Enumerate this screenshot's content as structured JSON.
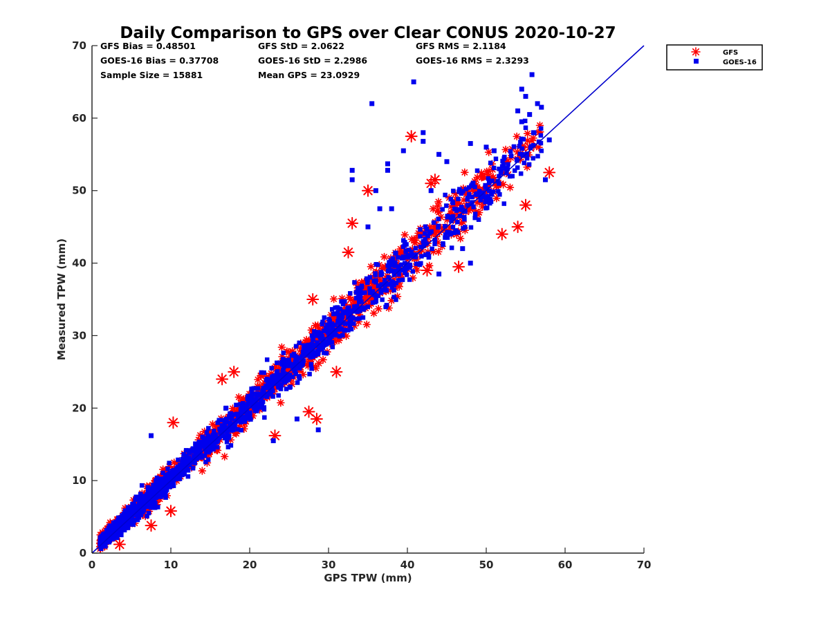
{
  "chart_data": {
    "type": "scatter",
    "title": "Daily Comparison to GPS over Clear CONUS 2020-10-27",
    "xlabel": "GPS TPW (mm)",
    "ylabel": "Measured TPW (mm)",
    "xlim": [
      0,
      70
    ],
    "ylim": [
      0,
      70
    ],
    "xticks": [
      "0",
      "10",
      "20",
      "30",
      "40",
      "50",
      "60",
      "70"
    ],
    "yticks": [
      "0",
      "10",
      "20",
      "30",
      "40",
      "50",
      "60",
      "70"
    ],
    "grid": false,
    "legend_position": "top-right, outside",
    "stats": [
      "GFS Bias = 0.48501",
      "GFS StD = 2.0622",
      "GFS RMS = 2.1184",
      "GOES-16 Bias = 0.37708",
      "GOES-16 StD = 2.2986",
      "GOES-16 RMS = 2.3293",
      "Sample Size = 15881",
      "Mean GPS = 23.0929"
    ],
    "reference_line": {
      "name": "1:1 line",
      "color": "#0000cc",
      "x": [
        0,
        70
      ],
      "y": [
        0,
        70
      ]
    },
    "series": [
      {
        "name": "GFS",
        "marker": "asterisk",
        "color": "#ff0000",
        "bias": 0.48501,
        "std": 2.0622,
        "outliers": [
          [
            40.5,
            57.5
          ],
          [
            33,
            45.5
          ],
          [
            32.5,
            41.5
          ],
          [
            46.5,
            39.5
          ],
          [
            55,
            48
          ],
          [
            58,
            52.5
          ],
          [
            28.5,
            18.5
          ],
          [
            23.2,
            16.2
          ],
          [
            31,
            25
          ],
          [
            18,
            25
          ],
          [
            16.5,
            24
          ],
          [
            27.5,
            19.5
          ],
          [
            10.3,
            18
          ],
          [
            35,
            50
          ],
          [
            43.5,
            51.5
          ],
          [
            52,
            44
          ],
          [
            55.5,
            56
          ],
          [
            42.5,
            39
          ],
          [
            28,
            35
          ],
          [
            10,
            5.8
          ],
          [
            7.5,
            3.8
          ],
          [
            3.5,
            1.2
          ],
          [
            54,
            45
          ],
          [
            43,
            51
          ]
        ]
      },
      {
        "name": "GOES-16",
        "marker": "square",
        "color": "#0000ee",
        "bias": 0.37708,
        "std": 2.2986,
        "outliers": [
          [
            40.8,
            65
          ],
          [
            35.5,
            62
          ],
          [
            55.8,
            66
          ],
          [
            54.5,
            64
          ],
          [
            55,
            63
          ],
          [
            56.5,
            62
          ],
          [
            57,
            61.5
          ],
          [
            54,
            61
          ],
          [
            55.5,
            60.5
          ],
          [
            56,
            58
          ],
          [
            58,
            57
          ],
          [
            54.5,
            59.5
          ],
          [
            42,
            58
          ],
          [
            42,
            56.8
          ],
          [
            39.5,
            55.5
          ],
          [
            44,
            55
          ],
          [
            48,
            56.5
          ],
          [
            50,
            56
          ],
          [
            33,
            52.8
          ],
          [
            33,
            51.5
          ],
          [
            37.5,
            53.7
          ],
          [
            37.5,
            52.8
          ],
          [
            36,
            50
          ],
          [
            28.7,
            17
          ],
          [
            23,
            15.5
          ],
          [
            7.5,
            16.2
          ],
          [
            17,
            20
          ],
          [
            38,
            47.5
          ],
          [
            35,
            45
          ],
          [
            45,
            54
          ],
          [
            51,
            55.5
          ],
          [
            57.5,
            51.5
          ],
          [
            43,
            50
          ],
          [
            36.5,
            47.5
          ],
          [
            47,
            42
          ],
          [
            48,
            40
          ],
          [
            44,
            38.5
          ],
          [
            26,
            18.5
          ]
        ]
      }
    ]
  }
}
